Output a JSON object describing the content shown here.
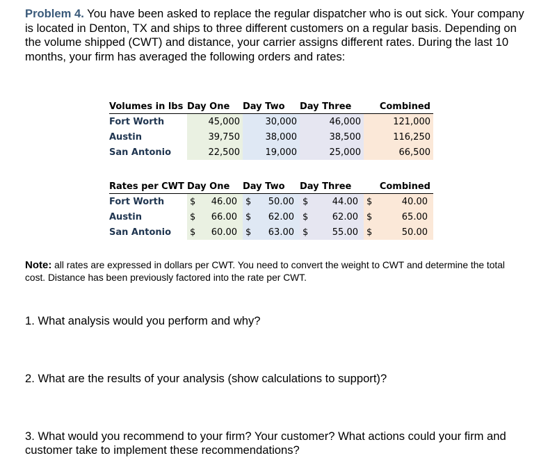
{
  "problem": {
    "label": "Problem 4.",
    "text": "You have been asked to replace the regular dispatcher who is out sick. Your company is located in Denton, TX and ships to three different customers on a regular basis. Depending on the volume shipped (CWT) and distance, your carrier assigns different rates. During the last 10 months, your firm has averaged the following orders and rates:"
  },
  "volumes": {
    "headers": [
      "Volumes in lbs",
      "Day One",
      "Day Two",
      "Day Three",
      "Combined"
    ],
    "rows": [
      {
        "name": "Fort Worth",
        "v": [
          "45,000",
          "30,000",
          "46,000",
          "121,000"
        ]
      },
      {
        "name": "Austin",
        "v": [
          "39,750",
          "38,000",
          "38,500",
          "116,250"
        ]
      },
      {
        "name": "San Antonio",
        "v": [
          "22,500",
          "19,000",
          "25,000",
          "66,500"
        ]
      }
    ]
  },
  "rates": {
    "headers": [
      "Rates per CWT",
      "Day One",
      "Day Two",
      "Day Three",
      "Combined"
    ],
    "currency": "$",
    "rows": [
      {
        "name": "Fort Worth",
        "v": [
          "46.00",
          "50.00",
          "44.00",
          "40.00"
        ]
      },
      {
        "name": "Austin",
        "v": [
          "66.00",
          "62.00",
          "62.00",
          "65.00"
        ]
      },
      {
        "name": "San Antonio",
        "v": [
          "60.00",
          "63.00",
          "55.00",
          "50.00"
        ]
      }
    ]
  },
  "note": {
    "label": "Note:",
    "text": "all rates are expressed in dollars per CWT.  You need to convert the weight to CWT and determine the total cost.  Distance has been previously factored into the rate per CWT."
  },
  "questions": [
    "1.  What analysis would you perform and why?",
    "2.  What are the results of your analysis (show calculations to support)?",
    "3.  What would you recommend to your firm? Your customer? What actions could your firm and customer take to implement these recommendations?"
  ]
}
